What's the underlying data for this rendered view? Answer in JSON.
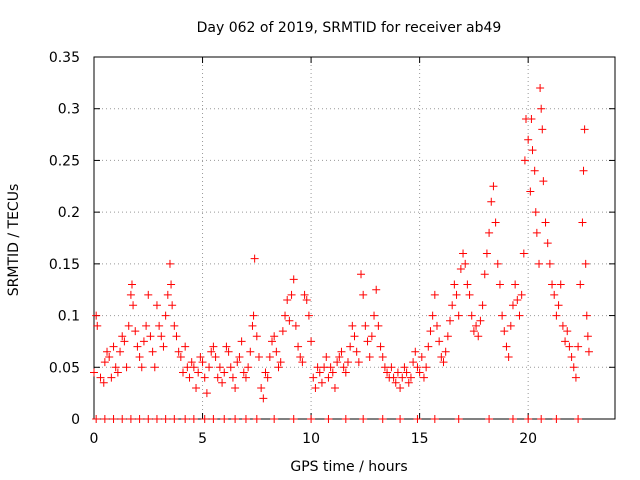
{
  "chart_data": {
    "type": "scatter",
    "title": "Day 062 of 2019, SRMTID for receiver ab49",
    "xlabel": "GPS time / hours",
    "ylabel": "SRMTID / TECUs",
    "xlim": [
      0,
      24
    ],
    "ylim": [
      0,
      0.35
    ],
    "grid": true,
    "x_ticks": [
      0,
      5,
      10,
      15,
      20
    ],
    "x_tick_labels": [
      "0",
      "5",
      "10",
      "15",
      "20"
    ],
    "y_ticks": [
      0,
      0.05,
      0.1,
      0.15,
      0.2,
      0.25,
      0.3,
      0.35
    ],
    "y_tick_labels": [
      "0",
      "0.05",
      "0.1",
      "0.15",
      "0.2",
      "0.25",
      "0.3",
      "0.35"
    ],
    "marker": "plus",
    "series_color": "#ff0000",
    "series": [
      {
        "name": "ab49",
        "points": [
          [
            0.0,
            0.045
          ],
          [
            0.1,
            0.1
          ],
          [
            0.15,
            0.09
          ],
          [
            0.3,
            0.04
          ],
          [
            0.45,
            0.035
          ],
          [
            0.5,
            0.055
          ],
          [
            0.6,
            0.065
          ],
          [
            0.7,
            0.06
          ],
          [
            0.8,
            0.04
          ],
          [
            0.9,
            0.07
          ],
          [
            1.0,
            0.05
          ],
          [
            1.1,
            0.045
          ],
          [
            1.2,
            0.065
          ],
          [
            1.3,
            0.08
          ],
          [
            1.4,
            0.075
          ],
          [
            1.5,
            0.05
          ],
          [
            1.6,
            0.09
          ],
          [
            1.7,
            0.12
          ],
          [
            1.75,
            0.13
          ],
          [
            1.8,
            0.11
          ],
          [
            1.9,
            0.085
          ],
          [
            2.0,
            0.07
          ],
          [
            2.1,
            0.06
          ],
          [
            2.2,
            0.05
          ],
          [
            2.3,
            0.075
          ],
          [
            2.4,
            0.09
          ],
          [
            2.5,
            0.12
          ],
          [
            2.6,
            0.08
          ],
          [
            2.7,
            0.065
          ],
          [
            2.8,
            0.05
          ],
          [
            2.9,
            0.11
          ],
          [
            3.0,
            0.09
          ],
          [
            3.1,
            0.08
          ],
          [
            3.2,
            0.07
          ],
          [
            3.3,
            0.1
          ],
          [
            3.4,
            0.12
          ],
          [
            3.5,
            0.15
          ],
          [
            3.55,
            0.13
          ],
          [
            3.6,
            0.11
          ],
          [
            3.7,
            0.09
          ],
          [
            3.8,
            0.08
          ],
          [
            3.9,
            0.065
          ],
          [
            4.0,
            0.06
          ],
          [
            4.1,
            0.045
          ],
          [
            4.2,
            0.07
          ],
          [
            4.3,
            0.05
          ],
          [
            4.4,
            0.04
          ],
          [
            4.5,
            0.055
          ],
          [
            4.6,
            0.05
          ],
          [
            4.7,
            0.03
          ],
          [
            4.8,
            0.045
          ],
          [
            4.9,
            0.06
          ],
          [
            5.0,
            0.055
          ],
          [
            5.1,
            0.04
          ],
          [
            5.2,
            0.025
          ],
          [
            5.3,
            0.05
          ],
          [
            5.4,
            0.065
          ],
          [
            5.5,
            0.07
          ],
          [
            5.6,
            0.06
          ],
          [
            5.7,
            0.04
          ],
          [
            5.8,
            0.05
          ],
          [
            5.9,
            0.035
          ],
          [
            6.0,
            0.045
          ],
          [
            6.1,
            0.07
          ],
          [
            6.2,
            0.065
          ],
          [
            6.3,
            0.05
          ],
          [
            6.4,
            0.04
          ],
          [
            6.5,
            0.03
          ],
          [
            6.6,
            0.055
          ],
          [
            6.7,
            0.06
          ],
          [
            6.8,
            0.075
          ],
          [
            6.9,
            0.045
          ],
          [
            7.0,
            0.04
          ],
          [
            7.1,
            0.05
          ],
          [
            7.2,
            0.065
          ],
          [
            7.3,
            0.09
          ],
          [
            7.35,
            0.1
          ],
          [
            7.4,
            0.155
          ],
          [
            7.5,
            0.08
          ],
          [
            7.6,
            0.06
          ],
          [
            7.7,
            0.03
          ],
          [
            7.8,
            0.02
          ],
          [
            7.9,
            0.045
          ],
          [
            8.0,
            0.04
          ],
          [
            8.1,
            0.06
          ],
          [
            8.2,
            0.075
          ],
          [
            8.3,
            0.08
          ],
          [
            8.4,
            0.065
          ],
          [
            8.5,
            0.05
          ],
          [
            8.6,
            0.055
          ],
          [
            8.7,
            0.085
          ],
          [
            8.8,
            0.1
          ],
          [
            8.9,
            0.115
          ],
          [
            9.0,
            0.095
          ],
          [
            9.1,
            0.12
          ],
          [
            9.2,
            0.135
          ],
          [
            9.3,
            0.09
          ],
          [
            9.4,
            0.07
          ],
          [
            9.5,
            0.06
          ],
          [
            9.6,
            0.055
          ],
          [
            9.7,
            0.12
          ],
          [
            9.8,
            0.115
          ],
          [
            9.9,
            0.1
          ],
          [
            10.0,
            0.075
          ],
          [
            10.1,
            0.04
          ],
          [
            10.2,
            0.03
          ],
          [
            10.3,
            0.05
          ],
          [
            10.4,
            0.045
          ],
          [
            10.5,
            0.035
          ],
          [
            10.6,
            0.05
          ],
          [
            10.7,
            0.06
          ],
          [
            10.8,
            0.04
          ],
          [
            10.9,
            0.05
          ],
          [
            11.0,
            0.045
          ],
          [
            11.1,
            0.03
          ],
          [
            11.2,
            0.055
          ],
          [
            11.3,
            0.06
          ],
          [
            11.4,
            0.065
          ],
          [
            11.5,
            0.05
          ],
          [
            11.6,
            0.045
          ],
          [
            11.7,
            0.055
          ],
          [
            11.8,
            0.07
          ],
          [
            11.9,
            0.09
          ],
          [
            12.0,
            0.08
          ],
          [
            12.1,
            0.065
          ],
          [
            12.2,
            0.055
          ],
          [
            12.3,
            0.14
          ],
          [
            12.4,
            0.12
          ],
          [
            12.5,
            0.09
          ],
          [
            12.6,
            0.075
          ],
          [
            12.7,
            0.06
          ],
          [
            12.8,
            0.08
          ],
          [
            12.9,
            0.1
          ],
          [
            13.0,
            0.125
          ],
          [
            13.1,
            0.09
          ],
          [
            13.2,
            0.07
          ],
          [
            13.3,
            0.06
          ],
          [
            13.4,
            0.05
          ],
          [
            13.5,
            0.045
          ],
          [
            13.6,
            0.04
          ],
          [
            13.7,
            0.05
          ],
          [
            13.8,
            0.04
          ],
          [
            13.9,
            0.035
          ],
          [
            14.0,
            0.045
          ],
          [
            14.1,
            0.03
          ],
          [
            14.2,
            0.04
          ],
          [
            14.3,
            0.05
          ],
          [
            14.4,
            0.045
          ],
          [
            14.5,
            0.035
          ],
          [
            14.6,
            0.04
          ],
          [
            14.7,
            0.055
          ],
          [
            14.8,
            0.065
          ],
          [
            14.9,
            0.05
          ],
          [
            15.0,
            0.045
          ],
          [
            15.1,
            0.06
          ],
          [
            15.2,
            0.04
          ],
          [
            15.3,
            0.05
          ],
          [
            15.4,
            0.07
          ],
          [
            15.5,
            0.085
          ],
          [
            15.6,
            0.1
          ],
          [
            15.7,
            0.12
          ],
          [
            15.8,
            0.09
          ],
          [
            15.9,
            0.075
          ],
          [
            16.0,
            0.06
          ],
          [
            16.1,
            0.055
          ],
          [
            16.2,
            0.065
          ],
          [
            16.3,
            0.08
          ],
          [
            16.4,
            0.095
          ],
          [
            16.5,
            0.11
          ],
          [
            16.6,
            0.13
          ],
          [
            16.7,
            0.12
          ],
          [
            16.8,
            0.1
          ],
          [
            16.9,
            0.145
          ],
          [
            17.0,
            0.16
          ],
          [
            17.1,
            0.15
          ],
          [
            17.2,
            0.13
          ],
          [
            17.3,
            0.12
          ],
          [
            17.4,
            0.1
          ],
          [
            17.5,
            0.085
          ],
          [
            17.6,
            0.09
          ],
          [
            17.7,
            0.08
          ],
          [
            17.8,
            0.095
          ],
          [
            17.9,
            0.11
          ],
          [
            18.0,
            0.14
          ],
          [
            18.1,
            0.16
          ],
          [
            18.2,
            0.18
          ],
          [
            18.3,
            0.21
          ],
          [
            18.4,
            0.225
          ],
          [
            18.5,
            0.19
          ],
          [
            18.6,
            0.15
          ],
          [
            18.7,
            0.13
          ],
          [
            18.8,
            0.1
          ],
          [
            18.9,
            0.085
          ],
          [
            19.0,
            0.07
          ],
          [
            19.1,
            0.06
          ],
          [
            19.2,
            0.09
          ],
          [
            19.3,
            0.11
          ],
          [
            19.4,
            0.13
          ],
          [
            19.5,
            0.115
          ],
          [
            19.6,
            0.1
          ],
          [
            19.7,
            0.12
          ],
          [
            19.8,
            0.16
          ],
          [
            19.85,
            0.25
          ],
          [
            19.9,
            0.29
          ],
          [
            20.0,
            0.27
          ],
          [
            20.1,
            0.22
          ],
          [
            20.15,
            0.29
          ],
          [
            20.2,
            0.26
          ],
          [
            20.3,
            0.24
          ],
          [
            20.35,
            0.2
          ],
          [
            20.4,
            0.18
          ],
          [
            20.5,
            0.15
          ],
          [
            20.55,
            0.32
          ],
          [
            20.6,
            0.3
          ],
          [
            20.65,
            0.28
          ],
          [
            20.7,
            0.23
          ],
          [
            20.8,
            0.19
          ],
          [
            20.9,
            0.17
          ],
          [
            21.0,
            0.15
          ],
          [
            21.1,
            0.13
          ],
          [
            21.2,
            0.12
          ],
          [
            21.3,
            0.1
          ],
          [
            21.4,
            0.11
          ],
          [
            21.5,
            0.13
          ],
          [
            21.6,
            0.09
          ],
          [
            21.7,
            0.075
          ],
          [
            21.8,
            0.085
          ],
          [
            21.9,
            0.07
          ],
          [
            22.0,
            0.06
          ],
          [
            22.1,
            0.05
          ],
          [
            22.2,
            0.04
          ],
          [
            22.3,
            0.07
          ],
          [
            22.4,
            0.13
          ],
          [
            22.5,
            0.19
          ],
          [
            22.55,
            0.24
          ],
          [
            22.6,
            0.28
          ],
          [
            22.65,
            0.15
          ],
          [
            22.7,
            0.1
          ],
          [
            22.75,
            0.08
          ],
          [
            22.8,
            0.065
          ],
          [
            0.1,
            0.0
          ],
          [
            0.5,
            0.0
          ],
          [
            0.9,
            0.0
          ],
          [
            1.3,
            0.0
          ],
          [
            1.7,
            0.0
          ],
          [
            2.1,
            0.0
          ],
          [
            2.5,
            0.0
          ],
          [
            2.9,
            0.0
          ],
          [
            3.3,
            0.0
          ],
          [
            3.7,
            0.0
          ],
          [
            4.2,
            0.0
          ],
          [
            4.6,
            0.0
          ],
          [
            5.1,
            0.0
          ],
          [
            5.5,
            0.0
          ],
          [
            6.0,
            0.0
          ],
          [
            6.5,
            0.0
          ],
          [
            7.0,
            0.0
          ],
          [
            7.5,
            0.0
          ],
          [
            8.3,
            0.0
          ],
          [
            9.2,
            0.0
          ],
          [
            10.0,
            0.0
          ],
          [
            10.8,
            0.0
          ],
          [
            11.6,
            0.0
          ],
          [
            12.4,
            0.0
          ],
          [
            13.3,
            0.0
          ],
          [
            14.1,
            0.0
          ],
          [
            14.9,
            0.0
          ],
          [
            15.7,
            0.0
          ],
          [
            16.8,
            0.0
          ],
          [
            18.2,
            0.0
          ],
          [
            19.3,
            0.0
          ],
          [
            20.0,
            0.0
          ],
          [
            20.6,
            0.0
          ],
          [
            21.3,
            0.0
          ],
          [
            22.3,
            0.0
          ]
        ]
      }
    ]
  }
}
